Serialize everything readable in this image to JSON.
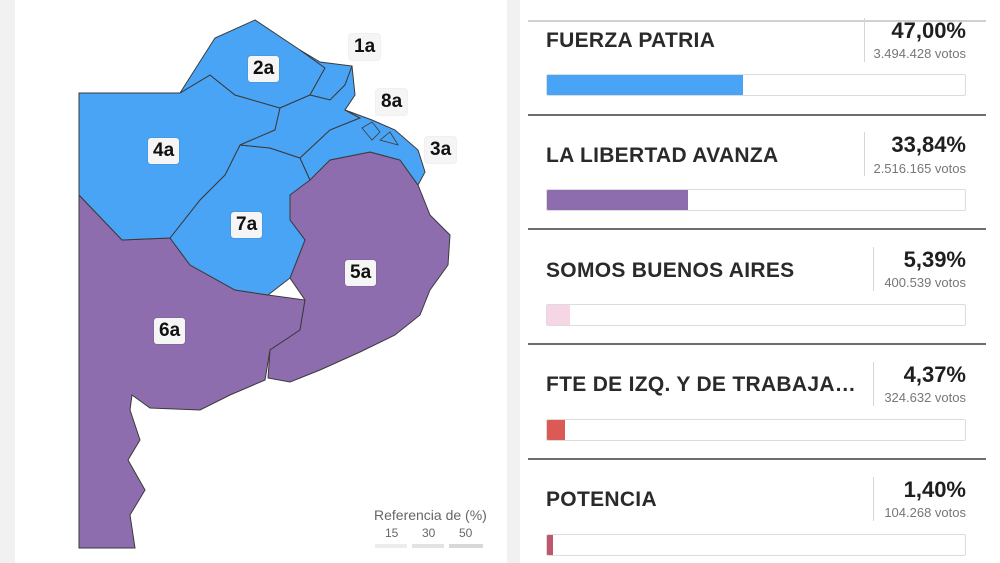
{
  "map": {
    "sections": [
      {
        "id": "1a",
        "label": "1a"
      },
      {
        "id": "2a",
        "label": "2a"
      },
      {
        "id": "3a",
        "label": "3a"
      },
      {
        "id": "4a",
        "label": "4a"
      },
      {
        "id": "5a",
        "label": "5a"
      },
      {
        "id": "6a",
        "label": "6a"
      },
      {
        "id": "7a",
        "label": "7a"
      },
      {
        "id": "8a",
        "label": "8a"
      }
    ],
    "colors": {
      "blue": "#4aa4f5",
      "purple": "#8e6daf",
      "border": "#3a3a3a"
    },
    "legend": {
      "title": "Referencia de (%)",
      "ticks": [
        "15",
        "30",
        "50"
      ]
    }
  },
  "results": {
    "parties": [
      {
        "name": "FUERZA PATRIA",
        "pct": "47,00%",
        "votes": "3.494.428 votos",
        "share": 47.0,
        "color": "#4aa4f5"
      },
      {
        "name": "LA LIBERTAD AVANZA",
        "pct": "33,84%",
        "votes": "2.516.165 votos",
        "share": 33.84,
        "color": "#8e6daf"
      },
      {
        "name": "SOMOS BUENOS AIRES",
        "pct": "5,39%",
        "votes": "400.539 votos",
        "share": 5.39,
        "color": "#f6d6e4"
      },
      {
        "name": "FTE DE IZQ. Y DE TRABAJADO…",
        "pct": "4,37%",
        "votes": "324.632 votos",
        "share": 4.37,
        "color": "#dc5a56"
      },
      {
        "name": "POTENCIA",
        "pct": "1,40%",
        "votes": "104.268 votos",
        "share": 1.4,
        "color": "#c0556e"
      }
    ]
  }
}
